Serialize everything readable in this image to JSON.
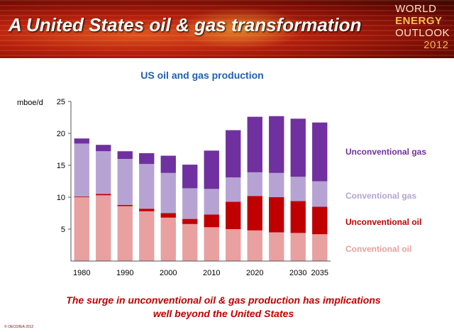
{
  "header": {
    "title": "A United States oil & gas transformation",
    "logo_line1": "WORLD",
    "logo_line2": "ENERGY",
    "logo_line3": "OUTLOOK",
    "logo_year": "2012"
  },
  "footer": {
    "caption_line1": "The surge in unconventional oil & gas production has implications",
    "caption_line2": "well beyond the United States",
    "copyright": "© OECD/IEA 2012"
  },
  "colors": {
    "conventional_oil": "#e8a0a0",
    "unconventional_oil": "#c00000",
    "conventional_gas": "#b7a3d3",
    "unconventional_gas": "#7030a0"
  },
  "chart_data": {
    "type": "bar",
    "stacked": true,
    "title": "US oil and gas production",
    "ylabel": "mboe/d",
    "ylim": [
      0,
      25
    ],
    "yticks": [
      "5",
      "10",
      "15",
      "20",
      "25"
    ],
    "xticks": [
      "1980",
      "1990",
      "2000",
      "2010",
      "2020",
      "2030",
      "2035"
    ],
    "categories": [
      "1980",
      "1985",
      "1990",
      "1995",
      "2000",
      "2005",
      "2010",
      "2015",
      "2020",
      "2025",
      "2030",
      "2035"
    ],
    "grid": false,
    "legend_position": "right",
    "series": [
      {
        "name": "Conventional oil",
        "color": "#e8a0a0",
        "values": [
          10.0,
          10.3,
          8.6,
          7.8,
          6.8,
          5.8,
          5.3,
          5.0,
          4.8,
          4.5,
          4.4,
          4.2
        ]
      },
      {
        "name": "Unconventional oil",
        "color": "#c00000",
        "values": [
          0.1,
          0.2,
          0.2,
          0.4,
          0.7,
          0.8,
          2.0,
          4.3,
          5.4,
          5.5,
          5.0,
          4.3
        ]
      },
      {
        "name": "Conventional gas",
        "color": "#b7a3d3",
        "values": [
          8.3,
          6.7,
          7.2,
          7.0,
          6.3,
          4.8,
          4.0,
          3.8,
          3.7,
          3.8,
          3.8,
          4.0
        ]
      },
      {
        "name": "Unconventional gas",
        "color": "#7030a0",
        "values": [
          0.8,
          1.0,
          1.2,
          1.7,
          2.7,
          3.7,
          6.0,
          7.4,
          8.7,
          8.9,
          9.1,
          9.2
        ]
      }
    ]
  }
}
